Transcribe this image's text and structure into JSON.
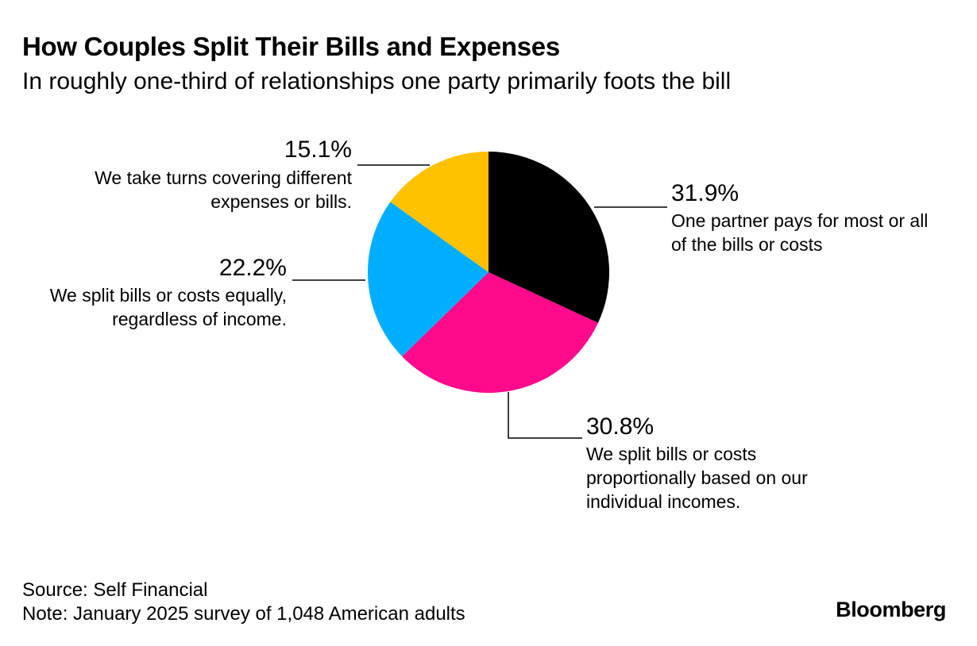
{
  "header": {
    "title": "How Couples Split Their Bills and Expenses",
    "subtitle": "In roughly one-third of relationships one party primarily foots the bill"
  },
  "footer": {
    "source": "Source: Self Financial",
    "note": "Note: January 2025 survey of 1,048 American adults",
    "brand": "Bloomberg"
  },
  "chart_data": {
    "type": "pie",
    "title": "How Couples Split Their Bills and Expenses",
    "subtitle": "In roughly one-third of relationships one party primarily foots the bill",
    "start": "12 o'clock",
    "direction": "clockwise",
    "slices": [
      {
        "key": "one-partner",
        "value": 31.9,
        "value_label": "31.9%",
        "label_lines": [
          "One partner pays for most or all",
          "of the bills or costs"
        ],
        "color": "#000000"
      },
      {
        "key": "proportional",
        "value": 30.8,
        "value_label": "30.8%",
        "label_lines": [
          "We split bills or costs",
          "proportionally based on our",
          "individual incomes."
        ],
        "color": "#ff0a8c"
      },
      {
        "key": "equal",
        "value": 22.2,
        "value_label": "22.2%",
        "label_lines": [
          "We split bills or costs equally,",
          "regardless of income."
        ],
        "color": "#00aeff"
      },
      {
        "key": "take-turns",
        "value": 15.1,
        "value_label": "15.1%",
        "label_lines": [
          "We take turns covering different",
          "expenses or bills."
        ],
        "color": "#ffc100"
      }
    ]
  }
}
